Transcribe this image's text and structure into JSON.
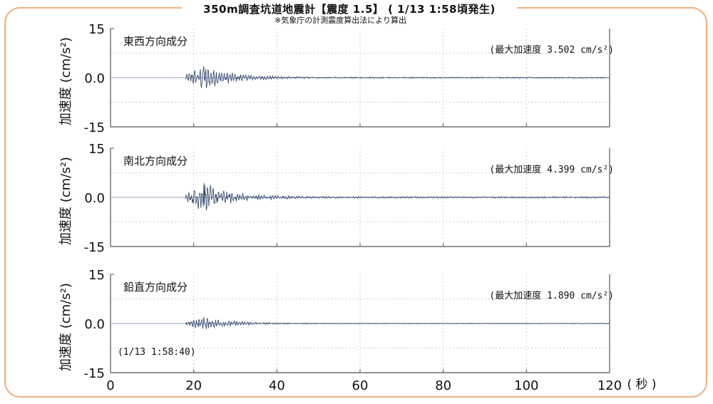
{
  "title": "350m調査坑道地震計【震度 1.5】 ( 1/13 1:58頃発生)",
  "subtitle": "※気象庁の計測震度算出法により算出",
  "colors": {
    "frame": "#f0b07a",
    "trace": "#2a3f66",
    "axis": "#555555",
    "grid": "#cfcfcf"
  },
  "x_unit_label": "( 秒 )",
  "time_label": "(1/13 1:58:40)",
  "chart_data": [
    {
      "type": "line",
      "component": "東西方向成分",
      "peak_label": "(最大加速度 3.502 cm/s²)",
      "ylabel": "加速度 (cm/s²)",
      "y_ticks": [
        "15",
        "0.0",
        "-15"
      ],
      "ylim": [
        -15,
        15
      ],
      "xlim": [
        0,
        120
      ],
      "peak": 3.502,
      "trace_start": 18,
      "trace_end": 120,
      "grid": true
    },
    {
      "type": "line",
      "component": "南北方向成分",
      "peak_label": "(最大加速度 4.399 cm/s²)",
      "ylabel": "加速度 (cm/s²)",
      "y_ticks": [
        "15",
        "0.0",
        "-15"
      ],
      "ylim": [
        -15,
        15
      ],
      "xlim": [
        0,
        120
      ],
      "peak": 4.399,
      "trace_start": 18,
      "trace_end": 120,
      "grid": true
    },
    {
      "type": "line",
      "component": "鉛直方向成分",
      "peak_label": "(最大加速度 1.890 cm/s²)",
      "ylabel": "加速度 (cm/s²)",
      "y_ticks": [
        "15",
        "0.0",
        "-15"
      ],
      "ylim": [
        -15,
        15
      ],
      "xlim": [
        0,
        120
      ],
      "peak": 1.89,
      "trace_start": 18,
      "trace_end": 120,
      "grid": true
    }
  ],
  "x_ticks": [
    "0",
    "20",
    "40",
    "60",
    "80",
    "100",
    "120"
  ]
}
